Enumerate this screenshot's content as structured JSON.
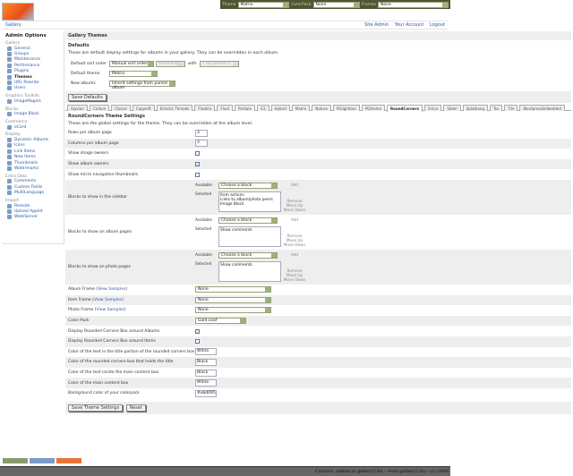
{
  "logo_text": "Gallery",
  "topbar": {
    "theme_label": "Theme",
    "theme_value": "Matrix",
    "colorpack_label": "ColorPack",
    "colorpack_value": "None",
    "frames_label": "Frames",
    "frames_value": "None"
  },
  "breadcrumb": {
    "root": "Gallery",
    "links": [
      "Site Admin",
      "Your Account",
      "Logout"
    ]
  },
  "sidebar": {
    "title": "Admin Options",
    "groups": [
      {
        "name": "Gallery",
        "items": [
          "General",
          "Groups",
          "Maintenance",
          "Performance",
          "Plugins",
          "Themes",
          "URL Rewrite",
          "Users"
        ]
      },
      {
        "name": "Graphics Toolkits",
        "items": [
          "ImageMagick"
        ]
      },
      {
        "name": "Blocks",
        "items": [
          "Image Block"
        ]
      },
      {
        "name": "Commerce",
        "items": [
          "eCard"
        ]
      },
      {
        "name": "Display",
        "items": [
          "Dynamic Albums",
          "Icons",
          "Link Items",
          "New Items",
          "Thumbnails",
          "Watermarks"
        ]
      },
      {
        "name": "Extra Data",
        "items": [
          "Comments",
          "Custom Fields",
          "MultiLanguage"
        ]
      },
      {
        "name": "Import",
        "items": [
          "Remote",
          "Upload Applet",
          "Web/Server"
        ]
      }
    ],
    "current": "Themes"
  },
  "main": {
    "title": "Gallery Themes",
    "defaults": {
      "heading": "Defaults",
      "description": "These are default display settings for albums in your gallery. They can be overridden in each album.",
      "sort_label": "Default sort order",
      "sort_value": "Manual sort order",
      "direction_value": "Ascending",
      "with_label": "with",
      "presort_value": "« no presort »",
      "theme_label": "Default theme",
      "theme_value": "Matrix",
      "new_albums_label": "New albums",
      "new_albums_value": "Inherit settings from parent album",
      "save": "Save Defaults"
    },
    "tabs": [
      "Ajaxian",
      "Carbon",
      "Classic",
      "Copyleft",
      "Eclectic Threads",
      "Floatrix",
      "Fluid",
      "PorSale",
      "G1",
      "Hybrid",
      "Matrix",
      "Nature",
      "PGlightbox",
      "PGtheme",
      "RoundCorners",
      "Siriux",
      "Slider",
      "Splatbang",
      "Tsu",
      "Tile",
      "WordpressEmbedded"
    ],
    "active_tab": "RoundCorners",
    "settings": {
      "heading": "RoundCorners Theme Settings",
      "description": "These are the global settings for the theme. They can be overridden at the album level.",
      "rows_label": "Rows per album page",
      "rows_value": "3",
      "cols_label": "Columns per album page",
      "cols_value": "3",
      "image_owners_label": "Show image owners",
      "image_owners": false,
      "album_owners_label": "Show album owners",
      "album_owners": true,
      "micro_label": "Show micro navigation thumbnails",
      "micro": false,
      "available_label": "Available",
      "selected_label": "Selected",
      "choose": "Choose a block",
      "add": "Add",
      "remove": "Remove",
      "move_up": "Move Up",
      "move_down": "Move Down",
      "sidebar_blocks_label": "Blocks to show in the sidebar",
      "sidebar_blocks": [
        "Item actions",
        "Links to album/photo peers",
        "Image Block"
      ],
      "album_blocks_label": "Blocks to show on album pages",
      "album_blocks": [
        "Show comments"
      ],
      "photo_blocks_label": "Blocks to show on photo pages",
      "photo_blocks": [
        "Show comments"
      ],
      "view_samples": "View Samples",
      "album_frame_label": "Album Frame",
      "album_frame": "None",
      "item_frame_label": "Item Frame",
      "item_frame": "None",
      "photo_frame_label": "Photo Frame",
      "photo_frame": "None",
      "color_pack_label": "Color Pack",
      "color_pack": "Gold Leaf",
      "rc_albums_label": "Display Rounded Corners Box around Albums",
      "rc_albums": true,
      "rc_items_label": "Display Rounded Corners Box around Items",
      "rc_items": false,
      "c1_label": "Color of the text in the title portion of the rounded corners box",
      "c1": "White",
      "c2_label": "Color of the rounded corners box that holds the title",
      "c2": "Black",
      "c3_label": "Color of the text inside the main content box",
      "c3": "Black",
      "c4_label": "Color of the main content box",
      "c4": "White",
      "c5_label": "Background color of your colorpack",
      "c5": "#ebd095",
      "save": "Save Theme Settings",
      "reset": "Reset"
    }
  },
  "footer": "Contact: admin at gallery2.hu - www.gallery2.hu - (c) 2006",
  "colors": {
    "topbar": "#4f5535",
    "link": "#2a5aa8",
    "footer": "#666666"
  }
}
